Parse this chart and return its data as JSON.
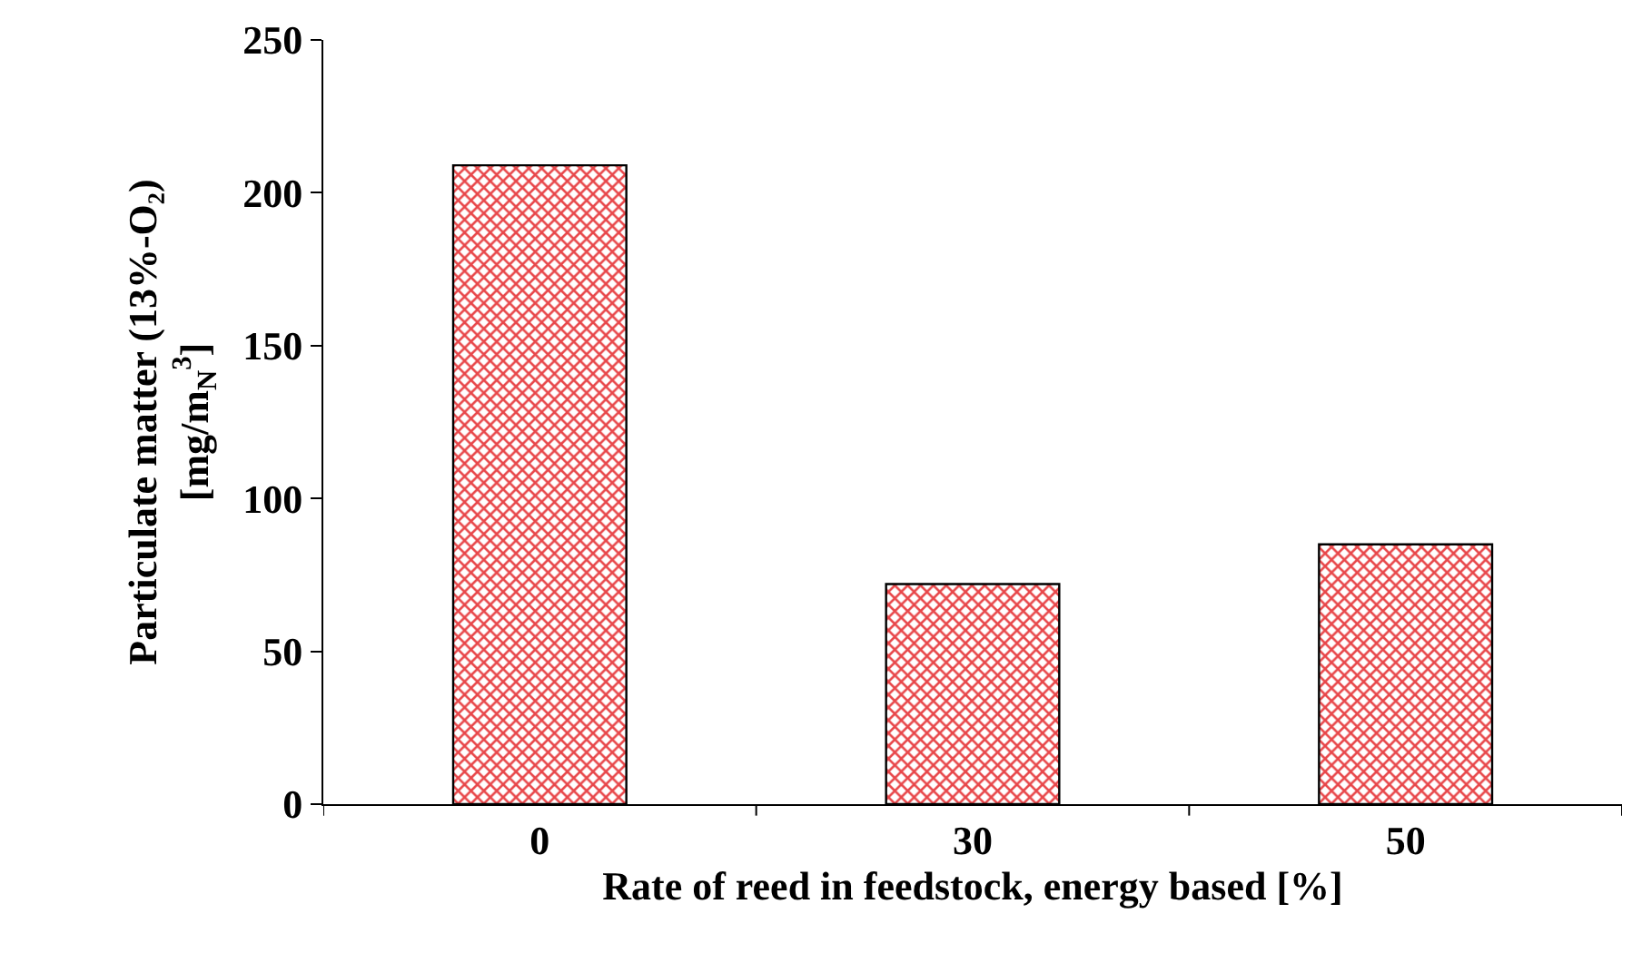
{
  "chart_data": {
    "type": "bar",
    "xlabel": "Rate of reed in feedstock, energy based [%]",
    "ylabel": "Particulate matter (13%-O₂)\n[mg/m$_{N}$$^{3}$]",
    "categories": [
      "0",
      "30",
      "50"
    ],
    "values": [
      209,
      72,
      85
    ],
    "color": "#e8474a",
    "ylim": [
      0,
      250
    ],
    "yticks": [
      0,
      50,
      100,
      150,
      200,
      250
    ]
  }
}
